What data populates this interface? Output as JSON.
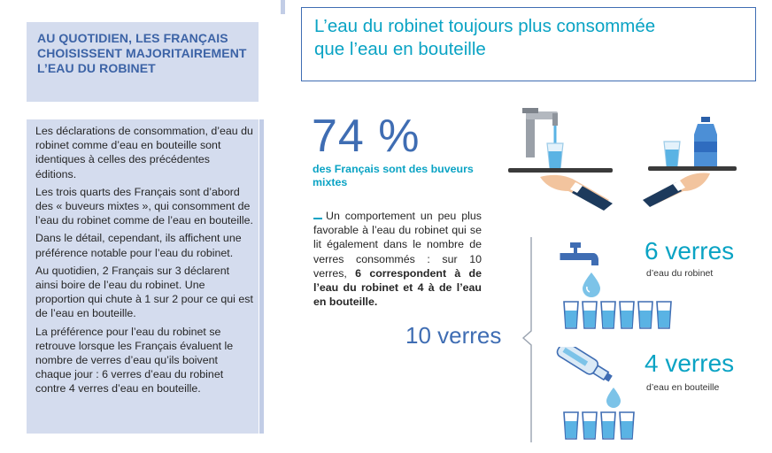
{
  "sidebar": {
    "heading": "AU QUOTIDIEN, LES FRANÇAIS CHOISISSENT MAJORITAIREMENT L’EAU DU ROBINET",
    "paragraphs": [
      "Les déclarations de consommation, d’eau du robinet comme d’eau en bouteille sont identiques à celles des précédentes éditions.",
      "Les trois quarts des Français sont d’abord des « buveurs mixtes », qui consomment de l’eau du robinet comme de l’eau en bouteille.",
      "Dans le détail, cependant, ils affichent une préférence notable pour l’eau du robinet.",
      "Au quotidien, 2 Français sur 3 déclarent ainsi boire de l’eau du robinet. Une proportion qui chute à 1 sur 2 pour ce qui est de l’eau en bouteille.",
      "La préférence pour l’eau du robinet se retrouve lorsque les Français évaluent le nombre de verres d’eau qu’ils boivent chaque jour : 6 verres d’eau du robinet contre 4 verres d’eau en bouteille."
    ]
  },
  "main": {
    "title_line1": "L’eau du robinet toujours plus consommée",
    "title_line2": "que l’eau en bouteille",
    "big_percent": "74 %",
    "percent_caption": "des Français sont des buveurs mixtes",
    "behavior_text": "Un comportement un peu plus favorable à l’eau du robinet qui se lit également dans le nombre de verres consommés : sur 10 verres, ",
    "behavior_bold": "6 correspondent à de l’eau du robinet et 4 à de l’eau en bouteille.",
    "total_glasses": "10 verres",
    "tap_count": "6 verres",
    "tap_caption": "d’eau du robinet",
    "bottle_count": "4 verres",
    "bottle_caption": "d’eau en bouteille"
  },
  "glasses": {
    "tap": 6,
    "bottle": 4
  },
  "colors": {
    "navy": "#3f6db3",
    "cyan": "#0aa3c4",
    "panel": "#d4dcee",
    "water": "#5ab3e4"
  },
  "icons": [
    "tap-icon",
    "water-drop-icon",
    "glass-icon",
    "bottle-icon",
    "serving-tray-icon",
    "hand-icon"
  ]
}
